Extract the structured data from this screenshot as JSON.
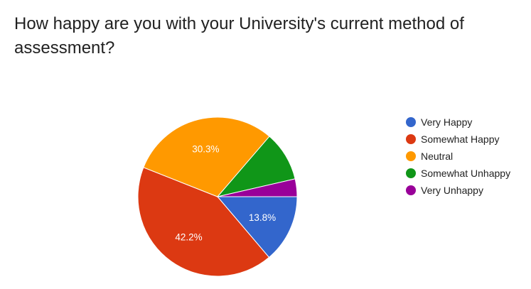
{
  "chart_data": {
    "type": "pie",
    "title": "How happy are you with your University's current method of assessment?",
    "categories": [
      "Very Happy",
      "Somewhat Happy",
      "Neutral",
      "Somewhat Unhappy",
      "Very Unhappy"
    ],
    "values": [
      13.8,
      42.2,
      30.3,
      10.1,
      3.6
    ],
    "data_labels": [
      "13.8%",
      "42.2%",
      "30.3%",
      "",
      ""
    ],
    "colors": [
      "#3366cc",
      "#dc3912",
      "#ff9900",
      "#109618",
      "#990099"
    ],
    "legend_position": "right"
  }
}
